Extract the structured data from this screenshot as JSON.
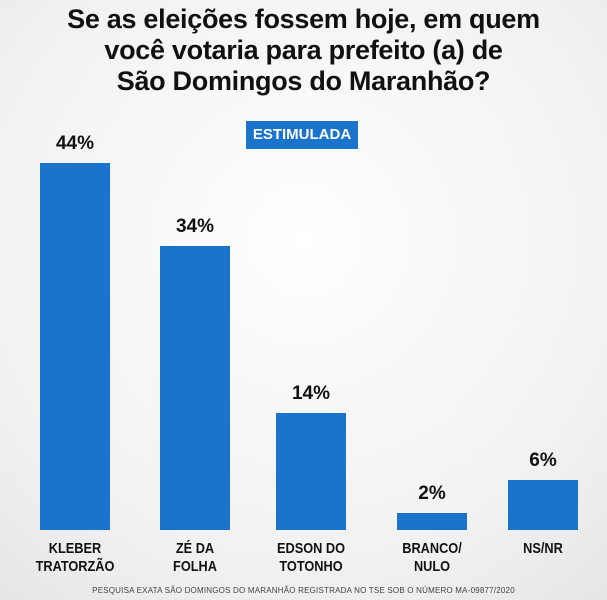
{
  "chart_data": {
    "type": "bar",
    "title": "Se as eleições fossem hoje, em quem\nvocê votaria para prefeito (a) de\nSão Domingos do Maranhão?",
    "subtitle": "ESTIMULADA",
    "categories": [
      "KLEBER\nTRATORZÃO",
      "ZÉ DA\nFOLHA",
      "EDSON DO\nTOTONHO",
      "BRANCO/\nNULO",
      "NS/NR"
    ],
    "values": [
      44,
      34,
      14,
      2,
      6
    ],
    "value_labels": [
      "44%",
      "34%",
      "14%",
      "2%",
      "6%"
    ],
    "color": "#1b74cc",
    "footnote": "PESQUISA EXATA SÃO DOMINGOS DO MARANHÃO REGISTRADA NO TSE SOB O NÚMERO MA-09877/2020"
  }
}
